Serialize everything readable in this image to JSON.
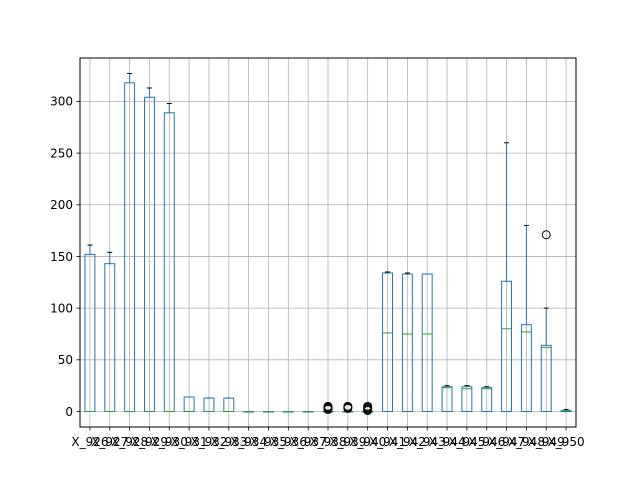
{
  "chart_data": {
    "type": "boxplot",
    "title": "",
    "xlabel": "",
    "ylabel": "",
    "ylim": [
      -15,
      342
    ],
    "yticks": [
      0,
      50,
      100,
      150,
      200,
      250,
      300
    ],
    "grid": true,
    "colors": {
      "box": "#1f77b4",
      "median": "#2ca02c",
      "whisker": "#000000",
      "grid": "#b0b0b0",
      "axis": "#000000"
    },
    "categories": [
      "X_926",
      "X_927",
      "X_928",
      "X_929",
      "X_930",
      "X_931",
      "X_932",
      "X_933",
      "X_934",
      "X_935",
      "X_936",
      "X_937",
      "X_938",
      "X_939",
      "X_940",
      "X_941",
      "X_942",
      "X_943",
      "X_944",
      "X_945",
      "X_946",
      "X_947",
      "X_948",
      "X_949",
      "X_950"
    ],
    "tick_labels": [
      "X_926",
      "X_927",
      "X_928",
      "X_929",
      "X_930",
      "X_931",
      "X_932",
      "X_933",
      "X_934",
      "X_935",
      "X_936",
      "X_937",
      "X_938",
      "X_939",
      "X_940",
      "X_941",
      "X_942",
      "X_943",
      "X_944",
      "X_945",
      "X_946",
      "X_947",
      "X_948",
      "X_949",
      "X_950"
    ],
    "boxes": [
      {
        "label": "X_926",
        "whislo": 0,
        "q1": 0,
        "med": 0,
        "q3": 152,
        "whishi": 161,
        "fliers": []
      },
      {
        "label": "X_927",
        "whislo": 0,
        "q1": 0,
        "med": 0,
        "q3": 143,
        "whishi": 154,
        "fliers": []
      },
      {
        "label": "X_928",
        "whislo": 0,
        "q1": 0,
        "med": 0,
        "q3": 318,
        "whishi": 327,
        "fliers": []
      },
      {
        "label": "X_929",
        "whislo": 0,
        "q1": 0,
        "med": 0,
        "q3": 304,
        "whishi": 313,
        "fliers": []
      },
      {
        "label": "X_930",
        "whislo": 0,
        "q1": 0,
        "med": 0,
        "q3": 289,
        "whishi": 298,
        "fliers": []
      },
      {
        "label": "X_931",
        "whislo": 0,
        "q1": 0,
        "med": 0,
        "q3": 14,
        "whishi": 14,
        "fliers": []
      },
      {
        "label": "X_932",
        "whislo": 0,
        "q1": 0,
        "med": 0,
        "q3": 13,
        "whishi": 13,
        "fliers": []
      },
      {
        "label": "X_933",
        "whislo": 0,
        "q1": 0,
        "med": 0,
        "q3": 13,
        "whishi": 13,
        "fliers": []
      },
      {
        "label": "X_934",
        "whislo": 0,
        "q1": 0,
        "med": 0,
        "q3": 0,
        "whishi": 0,
        "fliers": []
      },
      {
        "label": "X_935",
        "whislo": 0,
        "q1": 0,
        "med": 0,
        "q3": 0,
        "whishi": 0,
        "fliers": []
      },
      {
        "label": "X_936",
        "whislo": 0,
        "q1": 0,
        "med": 0,
        "q3": 0,
        "whishi": 0,
        "fliers": []
      },
      {
        "label": "X_937",
        "whislo": 0,
        "q1": 0,
        "med": 0,
        "q3": 0,
        "whishi": 0,
        "fliers": []
      },
      {
        "label": "X_938",
        "whislo": 0,
        "q1": 0,
        "med": 0,
        "q3": 0,
        "whishi": 0,
        "fliers": [
          2,
          3,
          4,
          5
        ]
      },
      {
        "label": "X_939",
        "whislo": 0,
        "q1": 0,
        "med": 0,
        "q3": 0,
        "whishi": 0,
        "fliers": [
          3,
          4,
          5
        ]
      },
      {
        "label": "X_940",
        "whislo": 0,
        "q1": 0,
        "med": 0,
        "q3": 0,
        "whishi": 0,
        "fliers": [
          1,
          2,
          3,
          4,
          5
        ]
      },
      {
        "label": "X_941",
        "whislo": 0,
        "q1": 0,
        "med": 76,
        "q3": 134,
        "whishi": 135,
        "fliers": []
      },
      {
        "label": "X_942",
        "whislo": 0,
        "q1": 0,
        "med": 75,
        "q3": 133,
        "whishi": 134,
        "fliers": []
      },
      {
        "label": "X_943",
        "whislo": 0,
        "q1": 0,
        "med": 75,
        "q3": 133,
        "whishi": 133,
        "fliers": []
      },
      {
        "label": "X_944",
        "whislo": 0,
        "q1": 0,
        "med": 23,
        "q3": 24,
        "whishi": 25,
        "fliers": []
      },
      {
        "label": "X_945",
        "whislo": 0,
        "q1": 0,
        "med": 22,
        "q3": 24,
        "whishi": 25,
        "fliers": []
      },
      {
        "label": "X_946",
        "whislo": 0,
        "q1": 0,
        "med": 22,
        "q3": 23,
        "whishi": 24,
        "fliers": []
      },
      {
        "label": "X_947",
        "whislo": 0,
        "q1": 0,
        "med": 80,
        "q3": 126,
        "whishi": 260,
        "fliers": []
      },
      {
        "label": "X_948",
        "whislo": 0,
        "q1": 0,
        "med": 77,
        "q3": 84,
        "whishi": 180,
        "fliers": []
      },
      {
        "label": "X_949",
        "whislo": 0,
        "q1": 0,
        "med": 62,
        "q3": 64,
        "whishi": 100,
        "fliers": [
          171
        ]
      },
      {
        "label": "X_950",
        "whislo": 0,
        "q1": 0,
        "med": 1,
        "q3": 1,
        "whishi": 2,
        "fliers": []
      }
    ]
  }
}
